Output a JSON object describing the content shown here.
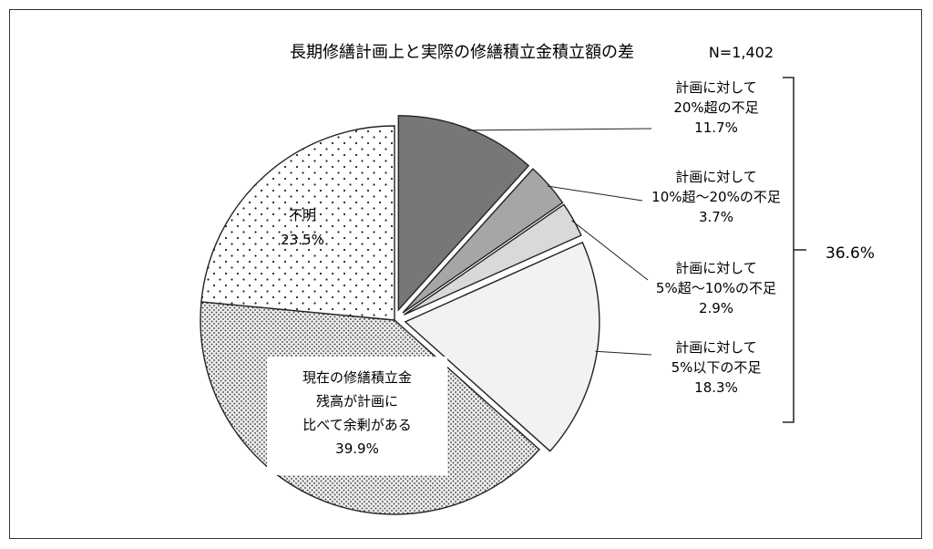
{
  "chart_data": {
    "type": "pie",
    "title": "長期修繕計画上と実際の修繕積立金積立額の差",
    "sample_size": "N=1,402",
    "slices": [
      {
        "lines": [
          "計画に対して",
          "20%超の不足"
        ],
        "value_label": "11.7%",
        "value": 11.7,
        "color": "#777777",
        "pattern": "solid",
        "exploded": true
      },
      {
        "lines": [
          "計画に対して",
          "10%超～20%の不足"
        ],
        "value_label": "3.7%",
        "value": 3.7,
        "color": "#a6a6a6",
        "pattern": "solid",
        "exploded": true
      },
      {
        "lines": [
          "計画に対して",
          "5%超～10%の不足"
        ],
        "value_label": "2.9%",
        "value": 2.9,
        "color": "#d9d9d9",
        "pattern": "solid",
        "exploded": true
      },
      {
        "lines": [
          "計画に対して",
          "5%以下の不足"
        ],
        "value_label": "18.3%",
        "value": 18.3,
        "color": "#f2f2f2",
        "pattern": "solid",
        "exploded": true
      },
      {
        "lines": [
          "現在の修繕積立金",
          "残高が計画に",
          "比べて余剰がある"
        ],
        "value_label": "39.9%",
        "value": 39.9,
        "color": "#d4d4d4",
        "pattern": "dense-dots",
        "exploded": false
      },
      {
        "lines": [
          "不明"
        ],
        "value_label": "23.5%",
        "value": 23.5,
        "color": "#ffffff",
        "pattern": "sparse-dots",
        "exploded": false
      }
    ],
    "bracket_total": "36.6%",
    "start_angle": "12 o'clock, clockwise",
    "legend": "none (direct labels)"
  }
}
